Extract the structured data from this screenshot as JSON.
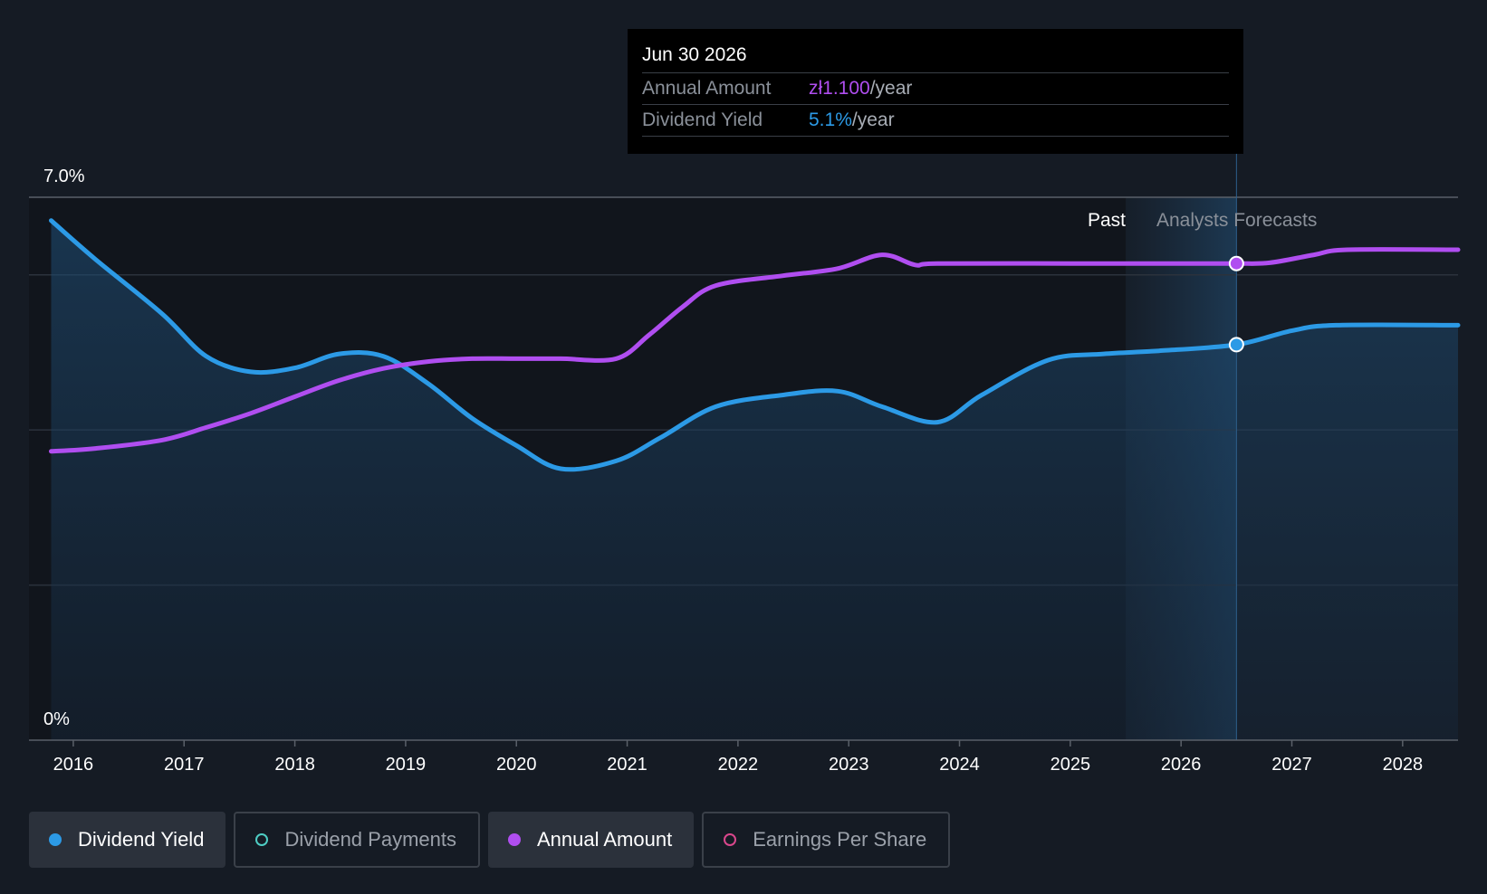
{
  "tooltip": {
    "date": "Jun 30 2026",
    "rows": [
      {
        "label": "Annual Amount",
        "value": "zł1.100",
        "unit": "/year"
      },
      {
        "label": "Dividend Yield",
        "value": "5.1%",
        "unit": "/year"
      }
    ]
  },
  "labels": {
    "past": "Past",
    "forecast": "Analysts Forecasts"
  },
  "legend": [
    {
      "label": "Dividend Yield",
      "color": "#2c9ae6",
      "active": true
    },
    {
      "label": "Dividend Payments",
      "color": "#4ecdc4",
      "active": false
    },
    {
      "label": "Annual Amount",
      "color": "#b04ef0",
      "active": true
    },
    {
      "label": "Earnings Per Share",
      "color": "#d9478c",
      "active": false
    }
  ],
  "colors": {
    "dividend_yield": "#2c9ae6",
    "annual_amount": "#b04ef0",
    "background": "#151b24"
  },
  "chart_data": {
    "type": "line",
    "y_tick_labels": [
      "7.0%",
      "0%"
    ],
    "ylim": [
      0,
      7.0
    ],
    "xlim": [
      2015.6,
      2028.5
    ],
    "x_ticks": [
      2016,
      2017,
      2018,
      2019,
      2020,
      2021,
      2022,
      2023,
      2024,
      2025,
      2026,
      2027,
      2028
    ],
    "forecast_start": 2025.5,
    "highlight_x": 2026.5,
    "grid": true,
    "series": [
      {
        "name": "Dividend Yield",
        "unit": "%",
        "area": true,
        "x": [
          2015.8,
          2016.2,
          2016.8,
          2017.2,
          2017.6,
          2018.0,
          2018.4,
          2018.8,
          2019.2,
          2019.6,
          2020.0,
          2020.4,
          2020.9,
          2021.3,
          2021.8,
          2022.4,
          2022.9,
          2023.3,
          2023.8,
          2024.2,
          2024.8,
          2025.3,
          2025.8,
          2026.5,
          2027.0,
          2027.4,
          2028.5
        ],
        "y": [
          6.7,
          6.2,
          5.5,
          4.95,
          4.75,
          4.8,
          4.98,
          4.95,
          4.6,
          4.15,
          3.8,
          3.5,
          3.6,
          3.9,
          4.3,
          4.45,
          4.5,
          4.3,
          4.1,
          4.45,
          4.9,
          4.98,
          5.02,
          5.1,
          5.28,
          5.35,
          5.35
        ]
      },
      {
        "name": "Annual Amount",
        "unit": "zł",
        "area": false,
        "x": [
          2015.8,
          2016.2,
          2016.8,
          2017.2,
          2017.6,
          2018.0,
          2018.4,
          2018.8,
          2019.2,
          2019.6,
          2020.0,
          2020.4,
          2020.9,
          2021.2,
          2021.5,
          2021.8,
          2022.4,
          2022.9,
          2023.3,
          2023.6,
          2023.8,
          2025.0,
          2026.0,
          2026.5,
          2026.8,
          2027.2,
          2027.5,
          2028.5
        ],
        "y": [
          0.581,
          0.589,
          0.612,
          0.647,
          0.686,
          0.732,
          0.777,
          0.81,
          0.829,
          0.837,
          0.837,
          0.837,
          0.837,
          0.903,
          0.98,
          1.039,
          1.066,
          1.086,
          1.124,
          1.096,
          1.1,
          1.1,
          1.1,
          1.1,
          1.102,
          1.124,
          1.138,
          1.138
        ]
      }
    ]
  }
}
